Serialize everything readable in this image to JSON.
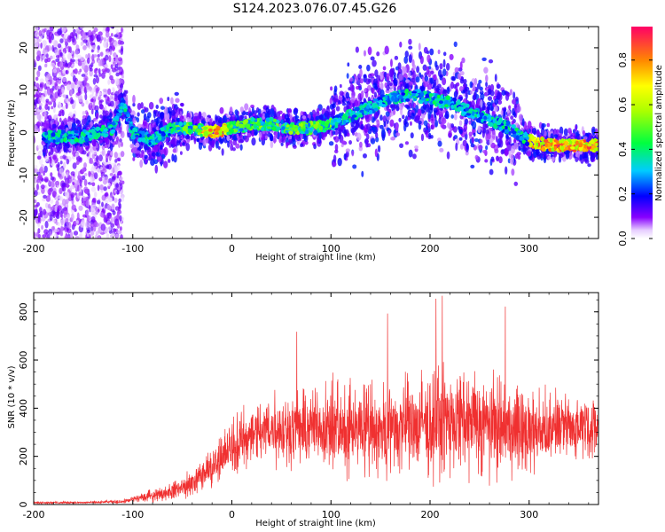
{
  "title": "S124.2023.076.07.45.G26",
  "chart_data": [
    {
      "type": "heatmap",
      "xlabel": "Height of straight line (km)",
      "ylabel": "Frequency (Hz)",
      "xlim": [
        -200,
        370
      ],
      "ylim": [
        -25,
        25
      ],
      "xticks": [
        -200,
        -100,
        0,
        100,
        200,
        300
      ],
      "yticks": [
        -20,
        -10,
        0,
        10,
        20
      ],
      "colorbar": {
        "label": "Normalized spectral amplitude",
        "range": [
          0,
          0.95
        ],
        "ticks": [
          0.0,
          0.2,
          0.4,
          0.6,
          0.8
        ]
      },
      "ridge": [
        {
          "x": -190,
          "y": -1
        },
        {
          "x": -150,
          "y": -1
        },
        {
          "x": -120,
          "y": 1
        },
        {
          "x": -110,
          "y": 7
        },
        {
          "x": -100,
          "y": 0
        },
        {
          "x": -80,
          "y": -2
        },
        {
          "x": -60,
          "y": 1
        },
        {
          "x": -40,
          "y": 1
        },
        {
          "x": -20,
          "y": 0
        },
        {
          "x": 0,
          "y": 1
        },
        {
          "x": 20,
          "y": 2
        },
        {
          "x": 40,
          "y": 2
        },
        {
          "x": 60,
          "y": 1
        },
        {
          "x": 80,
          "y": 1
        },
        {
          "x": 100,
          "y": 2
        },
        {
          "x": 120,
          "y": 4
        },
        {
          "x": 140,
          "y": 6
        },
        {
          "x": 160,
          "y": 8
        },
        {
          "x": 180,
          "y": 9
        },
        {
          "x": 200,
          "y": 8
        },
        {
          "x": 220,
          "y": 7
        },
        {
          "x": 240,
          "y": 5
        },
        {
          "x": 260,
          "y": 3
        },
        {
          "x": 280,
          "y": 1
        },
        {
          "x": 300,
          "y": -2
        },
        {
          "x": 320,
          "y": -3
        },
        {
          "x": 340,
          "y": -3
        },
        {
          "x": 365,
          "y": -3
        }
      ]
    },
    {
      "type": "line",
      "xlabel": "Height of straight line (km)",
      "ylabel": "SNR (10 * v/v)",
      "xlim": [
        -200,
        370
      ],
      "ylim": [
        0,
        880
      ],
      "xticks": [
        -200,
        -100,
        0,
        100,
        200,
        300
      ],
      "yticks": [
        0,
        200,
        400,
        600,
        800
      ],
      "series": [
        {
          "color": "#f03030",
          "envelope": [
            {
              "x": -200,
              "mean": 8,
              "spread": 6
            },
            {
              "x": -150,
              "mean": 8,
              "spread": 6
            },
            {
              "x": -110,
              "mean": 12,
              "spread": 10
            },
            {
              "x": -90,
              "mean": 30,
              "spread": 25
            },
            {
              "x": -60,
              "mean": 55,
              "spread": 45
            },
            {
              "x": -40,
              "mean": 90,
              "spread": 70
            },
            {
              "x": -20,
              "mean": 160,
              "spread": 110
            },
            {
              "x": 0,
              "mean": 240,
              "spread": 150
            },
            {
              "x": 20,
              "mean": 290,
              "spread": 170
            },
            {
              "x": 50,
              "mean": 320,
              "spread": 200
            },
            {
              "x": 100,
              "mean": 320,
              "spread": 230
            },
            {
              "x": 150,
              "mean": 310,
              "spread": 250
            },
            {
              "x": 200,
              "mean": 330,
              "spread": 270
            },
            {
              "x": 230,
              "mean": 350,
              "spread": 290
            },
            {
              "x": 270,
              "mean": 330,
              "spread": 270
            },
            {
              "x": 300,
              "mean": 300,
              "spread": 230
            },
            {
              "x": 330,
              "mean": 320,
              "spread": 170
            },
            {
              "x": 370,
              "mean": 330,
              "spread": 150
            }
          ]
        }
      ]
    }
  ]
}
